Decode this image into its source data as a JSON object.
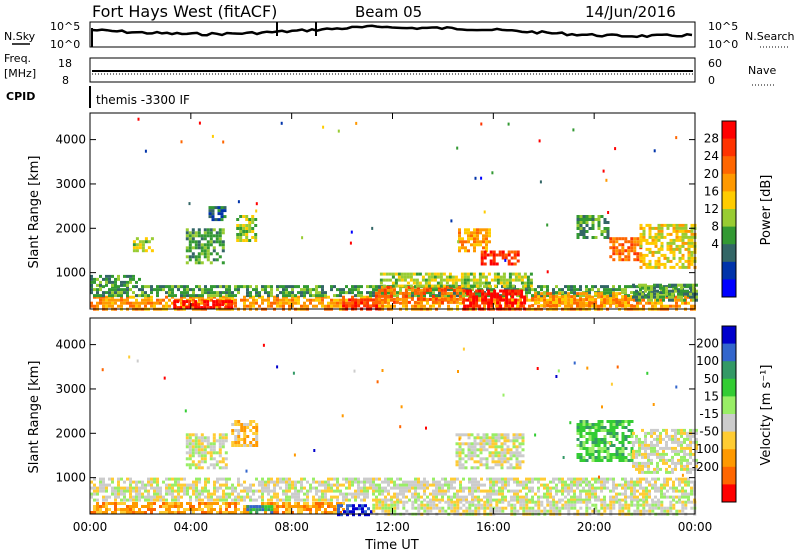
{
  "header": {
    "title": "Fort Hays West (fitACF)",
    "beam": "Beam 05",
    "date": "14/Jun/2016"
  },
  "status_panels": {
    "nsky_label": "N.Sky",
    "nsky_ticks": [
      "10^5",
      "10^0"
    ],
    "nsearch_label": "N.Search",
    "nsearch_ticks": [
      "10^5",
      "10^0"
    ],
    "freq_label": "Freq.",
    "freq_unit": "[MHz]",
    "freq_ticks": [
      "18",
      "8"
    ],
    "nave_label": "Nave",
    "nave_ticks": [
      "60",
      "0"
    ],
    "cpid_label": "CPID",
    "cpid_value": "themis -3300 IF"
  },
  "chart_data": [
    {
      "type": "heatmap",
      "panel": "power",
      "ylabel": "Slant Range [km]",
      "xlabel": "",
      "x_ticks": [
        "00:00",
        "04:00",
        "08:00",
        "12:00",
        "16:00",
        "20:00",
        "00:00"
      ],
      "y_ticks": [
        1000,
        2000,
        3000,
        4000
      ],
      "xlim": [
        0,
        24
      ],
      "ylim": [
        180,
        4600
      ],
      "colorbar": {
        "label": "Power [dB]",
        "ticks": [
          "28",
          "24",
          "20",
          "16",
          "12",
          "8",
          "4"
        ],
        "colors": [
          "#ff0000",
          "#ff3300",
          "#ff6600",
          "#ff9900",
          "#ffcc00",
          "#99cc33",
          "#339933",
          "#336666",
          "#0033aa",
          "#0000ff"
        ]
      },
      "regions": [
        {
          "t0": 0.0,
          "t1": 24.0,
          "r0": 180,
          "r1": 480,
          "level": 3
        },
        {
          "t0": 0.0,
          "t1": 24.0,
          "r0": 480,
          "r1": 720,
          "level": 6
        },
        {
          "t0": 0.0,
          "t1": 2.0,
          "r0": 720,
          "r1": 950,
          "level": 6
        },
        {
          "t0": 3.3,
          "t1": 5.6,
          "r0": 190,
          "r1": 380,
          "level": 0
        },
        {
          "t0": 10.0,
          "t1": 11.5,
          "r0": 200,
          "r1": 420,
          "level": 1
        },
        {
          "t0": 11.3,
          "t1": 14.8,
          "r0": 300,
          "r1": 700,
          "level": 2
        },
        {
          "t0": 14.8,
          "t1": 17.2,
          "r0": 200,
          "r1": 620,
          "level": 0
        },
        {
          "t0": 11.5,
          "t1": 17.5,
          "r0": 700,
          "r1": 1000,
          "level": 5
        },
        {
          "t0": 17.5,
          "t1": 21.5,
          "r0": 240,
          "r1": 560,
          "level": 3
        },
        {
          "t0": 21.5,
          "t1": 24.0,
          "r0": 400,
          "r1": 750,
          "level": 6
        },
        {
          "t0": 1.7,
          "t1": 2.5,
          "r0": 1500,
          "r1": 1800,
          "level": 5
        },
        {
          "t0": 3.8,
          "t1": 5.3,
          "r0": 1200,
          "r1": 2000,
          "level": 6
        },
        {
          "t0": 4.7,
          "t1": 5.4,
          "r0": 2200,
          "r1": 2500,
          "level": 7
        },
        {
          "t0": 5.8,
          "t1": 6.6,
          "r0": 1700,
          "r1": 2300,
          "level": 5
        },
        {
          "t0": 14.6,
          "t1": 15.8,
          "r0": 1500,
          "r1": 2000,
          "level": 3
        },
        {
          "t0": 15.5,
          "t1": 17.0,
          "r0": 1200,
          "r1": 1500,
          "level": 1
        },
        {
          "t0": 19.3,
          "t1": 20.6,
          "r0": 1800,
          "r1": 2300,
          "level": 6
        },
        {
          "t0": 20.6,
          "t1": 21.8,
          "r0": 1300,
          "r1": 1800,
          "level": 2
        },
        {
          "t0": 21.8,
          "t1": 24.0,
          "r0": 1100,
          "r1": 2100,
          "level": 4
        }
      ]
    },
    {
      "type": "heatmap",
      "panel": "velocity",
      "ylabel": "Slant Range [km]",
      "xlabel": "Time UT",
      "x_ticks": [
        "00:00",
        "04:00",
        "08:00",
        "12:00",
        "16:00",
        "20:00",
        "00:00"
      ],
      "y_ticks": [
        1000,
        2000,
        3000,
        4000
      ],
      "xlim": [
        0,
        24
      ],
      "ylim": [
        180,
        4600
      ],
      "colorbar": {
        "label": "Velocity [m s⁻¹]",
        "ticks": [
          "200",
          "100",
          "50",
          "15",
          "-15",
          "-50",
          "-100",
          "-200"
        ],
        "colors": [
          "#0000cc",
          "#3366cc",
          "#339966",
          "#33cc33",
          "#99ee66",
          "#cccccc",
          "#ffcc33",
          "#ff9900",
          "#ff6600",
          "#ff0000"
        ]
      },
      "regions": [
        {
          "t0": 0.0,
          "t1": 24.0,
          "r0": 480,
          "r1": 1000,
          "level": 5
        },
        {
          "t0": 0.0,
          "t1": 10.0,
          "r0": 180,
          "r1": 450,
          "level": 7
        },
        {
          "t0": 9.8,
          "t1": 11.2,
          "r0": 190,
          "r1": 400,
          "level": 0
        },
        {
          "t0": 6.2,
          "t1": 7.2,
          "r0": 200,
          "r1": 380,
          "level": 2
        },
        {
          "t0": 11.2,
          "t1": 24.0,
          "r0": 190,
          "r1": 480,
          "level": 5
        },
        {
          "t0": 3.8,
          "t1": 5.4,
          "r0": 1200,
          "r1": 2000,
          "level": 5
        },
        {
          "t0": 5.6,
          "t1": 6.6,
          "r0": 1700,
          "r1": 2300,
          "level": 6
        },
        {
          "t0": 14.5,
          "t1": 17.2,
          "r0": 1200,
          "r1": 2000,
          "level": 5
        },
        {
          "t0": 19.3,
          "t1": 21.5,
          "r0": 1400,
          "r1": 2300,
          "level": 3
        },
        {
          "t0": 21.5,
          "t1": 24.0,
          "r0": 1100,
          "r1": 2100,
          "level": 5
        }
      ]
    }
  ]
}
